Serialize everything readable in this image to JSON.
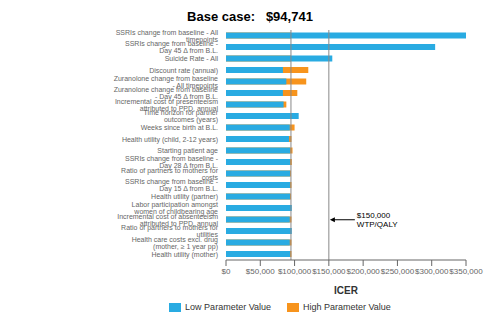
{
  "chart_data": {
    "type": "bar",
    "orientation": "horizontal",
    "title": "Base case:   $94,741",
    "xlabel": "ICER",
    "xlim": [
      0,
      350000
    ],
    "xticks": [
      {
        "value": 0,
        "label": "$0"
      },
      {
        "value": 50000,
        "label": "$50,000"
      },
      {
        "value": 100000,
        "label": "$100,000"
      },
      {
        "value": 150000,
        "label": "$150,000"
      },
      {
        "value": 200000,
        "label": "$200,000"
      },
      {
        "value": 250000,
        "label": "$250,000"
      },
      {
        "value": 300000,
        "label": "$300,000"
      },
      {
        "value": 350000,
        "label": "$350,000"
      }
    ],
    "grid": false,
    "legend": "bottom",
    "reference_lines": [
      94741,
      150000
    ],
    "annotations": [
      {
        "text": "$150,000\nWTP/QALY",
        "x": 150000,
        "category": "Incremental cost of absenteeism attributed to PPD, annual"
      }
    ],
    "categories": [
      "SSRIs change from baseline - All timepoints",
      "SSRIs change from baseline - Day 45 Δ from B.L.",
      "Suicide Rate - All",
      "Discount rate (annual)",
      "Zuranolone change from baseline - All timepoints",
      "Zuranolone change from baseline - Day 45 Δ from B.L.",
      "Incremental cost of presenteeism attributed to PPD, annual",
      "Time horizon for partner outcomes (years)",
      "Weeks since birth at B.L.",
      "Health utility (child, 2-12 years)",
      "Starting patient age",
      "SSRIs change from baseline - Day 28 Δ from B.L.",
      "Ratio of partners to mothers for costs",
      "SSRIs change from baseline - Day 15 Δ from B.L.",
      "Health utility (partner)",
      "Labor participation amongst women of childbearing age",
      "Incremental cost of absenteeism attributed to PPD, annual",
      "Ratio of partners to mothers for utilities",
      "Health care costs excl. drug (mother, ≥ 1 year pp)",
      "Health utility (mother)"
    ],
    "series": [
      {
        "name": "Low Parameter Value",
        "color": "#29ABE2",
        "values": [
          350000,
          305000,
          155000,
          83000,
          88000,
          83000,
          84000,
          106000,
          93000,
          92000,
          93500,
          93500,
          93500,
          93500,
          93500,
          96000,
          93000,
          96000,
          93000,
          93500
        ]
      },
      {
        "name": "High Parameter Value",
        "color": "#F7941D",
        "values": [
          94741,
          94741,
          94741,
          120000,
          117000,
          104000,
          88000,
          94741,
          100000,
          95500,
          97000,
          96000,
          94741,
          95500,
          94741,
          94741,
          95500,
          94741,
          95500,
          95500
        ]
      }
    ]
  }
}
